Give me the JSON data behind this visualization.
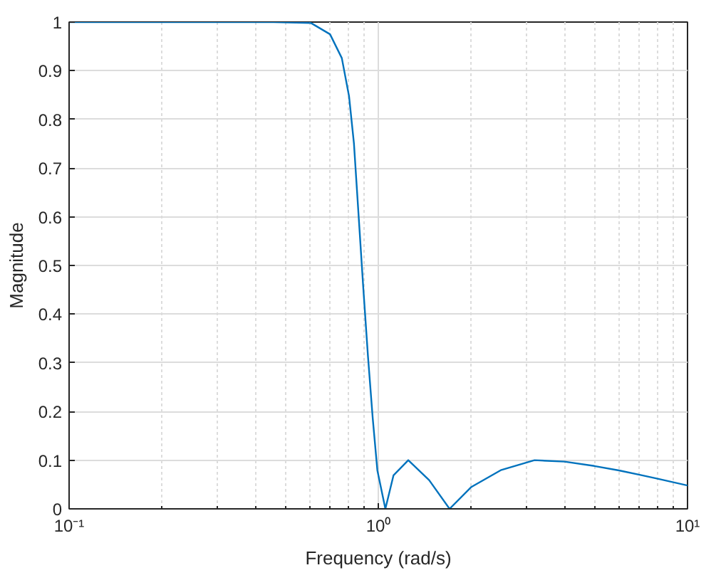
{
  "chart_data": {
    "type": "line",
    "xlabel": "Frequency (rad/s)",
    "ylabel": "Magnitude",
    "log": "x",
    "grid": true,
    "marker": "none",
    "line_style": "solid",
    "x": [
      0.1,
      0.3,
      0.458,
      0.606,
      0.698,
      0.762,
      0.804,
      0.834,
      0.863,
      0.893,
      0.926,
      0.959,
      0.993,
      1.054,
      1.12,
      1.25,
      1.46,
      1.7,
      2.0,
      2.5,
      3.2,
      4.0,
      5.0,
      6.0,
      7.0,
      8.0,
      10.0
    ],
    "series": [
      {
        "color": "#0072bd",
        "values": [
          1,
          1,
          1,
          0.998,
          0.975,
          0.926,
          0.848,
          0.751,
          0.605,
          0.459,
          0.313,
          0.187,
          0.079,
          0,
          0.069,
          0.1,
          0.059,
          0,
          0.045,
          0.08,
          0.1,
          0.097,
          0.088,
          0.079,
          0.07,
          0.062,
          0.048
        ]
      }
    ],
    "xlim": [
      0.1,
      10
    ],
    "ylim": [
      0,
      1
    ],
    "xticks": [
      {
        "value": 0.1,
        "label": "10⁻¹"
      },
      {
        "value": 1,
        "label": "10⁰"
      },
      {
        "value": 10,
        "label": "10¹"
      }
    ],
    "yticks": [
      0,
      0.1,
      0.2,
      0.3,
      0.4,
      0.5,
      0.6,
      0.7,
      0.8,
      0.9,
      1
    ]
  }
}
